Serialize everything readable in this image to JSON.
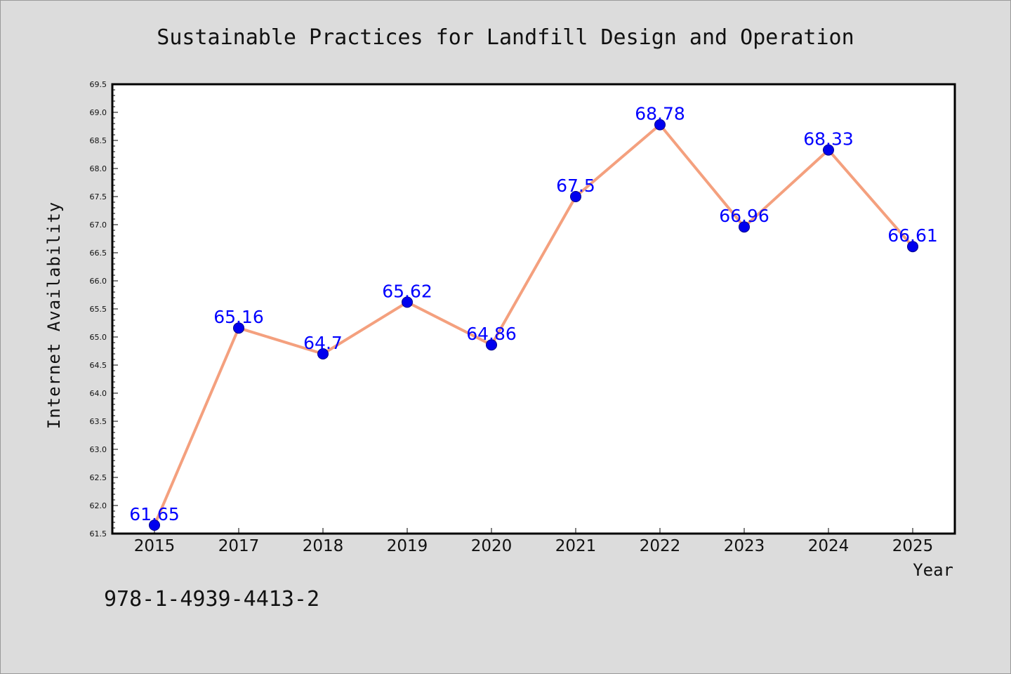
{
  "chart_data": {
    "type": "line",
    "title": "Sustainable Practices for Landfill Design and Operation",
    "xlabel": "Year",
    "ylabel": "Internet Availability",
    "categories": [
      "2015",
      "2017",
      "2018",
      "2019",
      "2020",
      "2021",
      "2022",
      "2023",
      "2024",
      "2025"
    ],
    "values": [
      61.65,
      65.16,
      64.7,
      65.62,
      64.86,
      67.5,
      68.78,
      66.96,
      68.33,
      66.61
    ],
    "data_labels": [
      "61.65",
      "65.16",
      "64.7",
      "65.62",
      "64.86",
      "67.5",
      "68.78",
      "66.96",
      "68.33",
      "66.61"
    ],
    "ylim": [
      61.5,
      69.5
    ],
    "ytick_step": 0.5,
    "grid": false,
    "legend": "none",
    "line_color": "#f4a07e",
    "marker_color": "#0000ee",
    "label_color": "#0000ff"
  },
  "footer": {
    "isbn": "978-1-4939-4413-2"
  }
}
